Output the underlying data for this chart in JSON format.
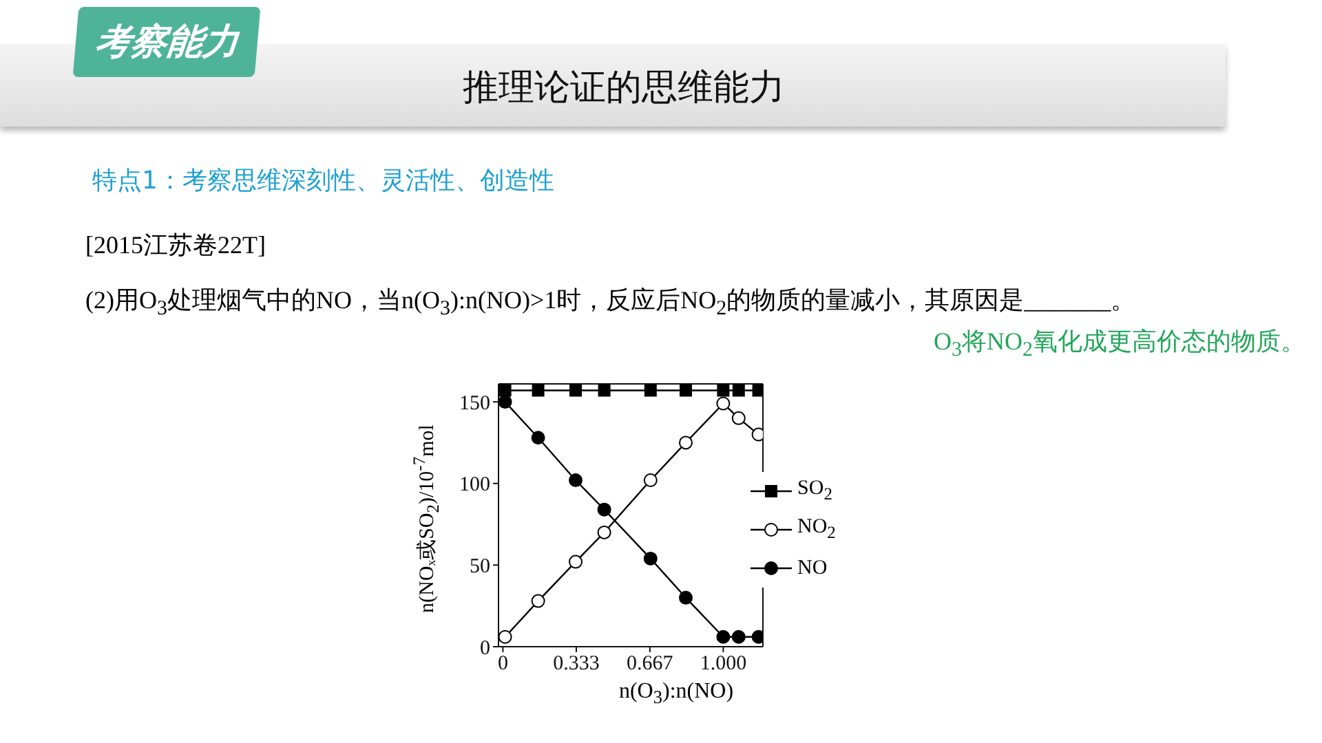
{
  "chart_data": {
    "type": "line",
    "title": "推理论证的思维能力",
    "subtitle": "特点1：考察思维深刻性、灵活性、创造性",
    "annotations": [
      "考察能力",
      "[2015江苏卷22T]",
      "(2)用O$_{3}$处理烟气中的NO，当n(O$_{3}$):n(NO)>1时，反应后NO$_{2}$的物质的量减小，其原因是_______。",
      "O$_{3}$将NO$_{2}$氧化成更高价态的物质。"
    ],
    "xlabel": "n(O$_{3}$):n(NO)",
    "ylabel": "n(NOₓ或SO$_{2}$)/10$^{-7}$mol",
    "x": [
      0.01,
      0.16,
      0.33,
      0.46,
      0.67,
      0.83,
      1.0,
      1.07,
      1.16
    ],
    "series": [
      {
        "name": "SO$_{2}$",
        "color": "#000000",
        "marker": "square",
        "values": [
          157,
          157,
          157,
          157,
          157,
          157,
          157,
          157,
          157
        ]
      },
      {
        "name": "NO$_{2}$",
        "color": "#000000",
        "marker": "circle",
        "values": [
          6,
          28,
          52,
          70,
          102,
          125,
          149,
          140,
          130
        ]
      },
      {
        "name": "NO",
        "color": "#000000",
        "marker": "circle",
        "values": [
          150,
          128,
          102,
          84,
          54,
          30,
          6,
          6,
          6
        ]
      }
    ],
    "xlim": [
      -0.02,
      1.18
    ],
    "xticks": [
      0,
      {
        "value": 0.333,
        "label": "0.333"
      },
      {
        "value": 0.667,
        "label": "0.667"
      },
      {
        "value": 1,
        "label": "1.000"
      }
    ],
    "ylim": [
      0,
      161
    ],
    "yticks": [
      0,
      50,
      100,
      150
    ],
    "grid": false,
    "legend": "right"
  }
}
